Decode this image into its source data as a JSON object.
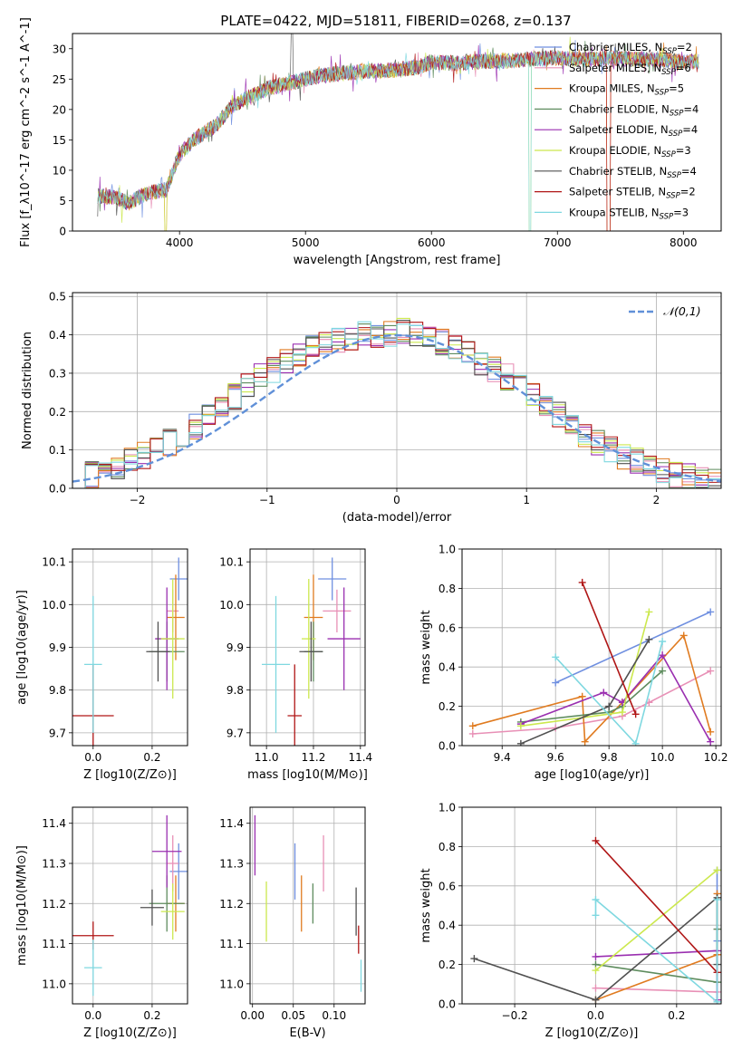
{
  "figure": {
    "title": "PLATE=0422, MJD=51811, FIBERID=0268, z=0.137"
  },
  "models": [
    {
      "name": "Chabrier MILES",
      "nssp": "2",
      "color": "#6f8fe0"
    },
    {
      "name": "Salpeter MILES",
      "nssp": "6",
      "color": "#e890b6"
    },
    {
      "name": "Kroupa MILES",
      "nssp": "5",
      "color": "#e07b20"
    },
    {
      "name": "Chabrier ELODIE",
      "nssp": "4",
      "color": "#5e8c5e"
    },
    {
      "name": "Salpeter ELODIE",
      "nssp": "4",
      "color": "#9a2fb0"
    },
    {
      "name": "Kroupa ELODIE",
      "nssp": "3",
      "color": "#cce84e"
    },
    {
      "name": "Chabrier STELIB",
      "nssp": "4",
      "color": "#505050"
    },
    {
      "name": "Salpeter STELIB",
      "nssp": "2",
      "color": "#b01616"
    },
    {
      "name": "Kroupa STELIB",
      "nssp": "3",
      "color": "#7fd8e0"
    }
  ],
  "chart_data": [
    {
      "id": "spectrum",
      "type": "line",
      "xlabel": "wavelength [Angstrom, rest frame]",
      "ylabel": "Flux [f_λ10^-17 erg cm^-2 s^-1 A^-1]",
      "xlim": [
        3150,
        8300
      ],
      "ylim": [
        0,
        32.5
      ],
      "xticks": [
        4000,
        5000,
        6000,
        7000,
        8000
      ],
      "yticks": [
        0,
        5,
        10,
        15,
        20,
        25,
        30
      ],
      "grid": false,
      "legend": "top-right",
      "continuum": {
        "x": [
          3350,
          3500,
          3600,
          3700,
          3800,
          3900,
          3950,
          4000,
          4100,
          4200,
          4300,
          4400,
          4500,
          4700,
          4900,
          5100,
          5300,
          5500,
          5700,
          5900,
          6000,
          6200,
          6400,
          6600,
          6800,
          7000,
          7200,
          7400,
          7600,
          7800,
          8000,
          8100
        ],
        "y": [
          5.8,
          5.5,
          4.6,
          5.8,
          6.5,
          6.8,
          10,
          12.5,
          14.8,
          16.2,
          17.5,
          20.3,
          21.5,
          23.5,
          24.5,
          25.5,
          26.0,
          26.3,
          26.5,
          27.0,
          27.8,
          27.6,
          27.9,
          28.0,
          28.3,
          28.5,
          28.2,
          28.5,
          28.3,
          28.2,
          27.8,
          27.9
        ]
      }
    },
    {
      "id": "residuals",
      "type": "histogram",
      "xlabel": "(data-model)/error",
      "ylabel": "Normed distribution",
      "xlim": [
        -2.5,
        2.5
      ],
      "ylim": [
        0,
        0.51
      ],
      "xticks": [
        -2,
        -1,
        0,
        1,
        2
      ],
      "yticks": [
        0.0,
        0.1,
        0.2,
        0.3,
        0.4,
        0.5
      ],
      "grid": true,
      "legend": "top-right",
      "reference": {
        "label": "𝒩(0,1)",
        "color": "#6090d8",
        "mean": 0,
        "sigma": 1
      },
      "bins": [
        -2.5,
        2.5,
        50
      ],
      "series_profile": [
        0.03,
        0.035,
        0.045,
        0.055,
        0.07,
        0.085,
        0.1,
        0.12,
        0.14,
        0.16,
        0.19,
        0.215,
        0.24,
        0.27,
        0.29,
        0.31,
        0.33,
        0.35,
        0.37,
        0.38,
        0.385,
        0.39,
        0.4,
        0.4,
        0.405,
        0.41,
        0.4,
        0.39,
        0.38,
        0.37,
        0.35,
        0.33,
        0.31,
        0.29,
        0.265,
        0.24,
        0.215,
        0.19,
        0.16,
        0.14,
        0.12,
        0.1,
        0.085,
        0.07,
        0.055,
        0.045,
        0.035,
        0.03,
        0.025,
        0.02
      ]
    },
    {
      "id": "age_vs_Z",
      "type": "scatter",
      "xlabel": "Z [log10(Z/Z⊙)]",
      "ylabel": "age [log10(age/yr)]",
      "xlim": [
        -0.07,
        0.32
      ],
      "ylim": [
        9.67,
        10.13
      ],
      "xticks": [
        0.0,
        0.2
      ],
      "yticks": [
        9.7,
        9.8,
        9.9,
        10.0,
        10.1
      ],
      "grid": true,
      "points": [
        {
          "x": 0.29,
          "y": 10.06,
          "xerr": 0.03,
          "yerr": 0.05
        },
        {
          "x": 0.27,
          "y": 9.985,
          "xerr": 0.02,
          "yerr": 0.05
        },
        {
          "x": 0.28,
          "y": 9.97,
          "xerr": 0.03,
          "yerr": 0.1
        },
        {
          "x": 0.25,
          "y": 9.89,
          "xerr": 0.06,
          "yerr": 0.07
        },
        {
          "x": 0.25,
          "y": 9.92,
          "xerr": 0.04,
          "yerr": 0.12
        },
        {
          "x": 0.27,
          "y": 9.92,
          "xerr": 0.04,
          "yerr": 0.14
        },
        {
          "x": 0.22,
          "y": 9.89,
          "xerr": 0.04,
          "yerr": 0.07
        },
        {
          "x": 0.0,
          "y": 9.74,
          "xerr": 0.07,
          "yerr": 0.12
        },
        {
          "x": 0.0,
          "y": 9.86,
          "xerr": 0.03,
          "yerr": 0.16
        }
      ]
    },
    {
      "id": "age_vs_mass",
      "type": "scatter",
      "xlabel": "mass [log10(M/M⊙)]",
      "ylabel": "",
      "xlim": [
        10.93,
        11.42
      ],
      "ylim": [
        9.67,
        10.13
      ],
      "xticks": [
        11.0,
        11.2,
        11.4
      ],
      "yticks": [
        9.7,
        9.8,
        9.9,
        10.0,
        10.1
      ],
      "grid": true,
      "points": [
        {
          "x": 11.28,
          "y": 10.06,
          "xerr": 0.06,
          "yerr": 0.05
        },
        {
          "x": 11.3,
          "y": 9.985,
          "xerr": 0.06,
          "yerr": 0.05
        },
        {
          "x": 11.2,
          "y": 9.97,
          "xerr": 0.04,
          "yerr": 0.1
        },
        {
          "x": 11.2,
          "y": 9.89,
          "xerr": 0.04,
          "yerr": 0.07
        },
        {
          "x": 11.33,
          "y": 9.92,
          "xerr": 0.07,
          "yerr": 0.12
        },
        {
          "x": 11.18,
          "y": 9.92,
          "xerr": 0.03,
          "yerr": 0.14
        },
        {
          "x": 11.19,
          "y": 9.89,
          "xerr": 0.05,
          "yerr": 0.07
        },
        {
          "x": 11.12,
          "y": 9.74,
          "xerr": 0.03,
          "yerr": 0.12
        },
        {
          "x": 11.04,
          "y": 9.86,
          "xerr": 0.06,
          "yerr": 0.16
        }
      ]
    },
    {
      "id": "weight_vs_age",
      "type": "line",
      "xlabel": "age [log10(age/yr)]",
      "ylabel": "mass weight",
      "xlim": [
        9.25,
        10.22
      ],
      "ylim": [
        0,
        1
      ],
      "xticks": [
        9.4,
        9.6,
        9.8,
        10.0,
        10.2
      ],
      "yticks": [
        0.0,
        0.2,
        0.4,
        0.6,
        0.8,
        1.0
      ],
      "grid": true,
      "series": [
        {
          "x": [
            9.6,
            10.18
          ],
          "y": [
            0.32,
            0.68
          ]
        },
        {
          "x": [
            9.29,
            9.6,
            9.85,
            9.95,
            10.18
          ],
          "y": [
            0.06,
            0.09,
            0.15,
            0.22,
            0.38
          ]
        },
        {
          "x": [
            9.29,
            9.7,
            9.71,
            9.85,
            10.08,
            10.18
          ],
          "y": [
            0.1,
            0.25,
            0.02,
            0.22,
            0.56,
            0.07
          ]
        },
        {
          "x": [
            9.47,
            9.8,
            9.85,
            10.0
          ],
          "y": [
            0.12,
            0.17,
            0.2,
            0.38
          ]
        },
        {
          "x": [
            9.47,
            9.78,
            9.85,
            10.0,
            10.18
          ],
          "y": [
            0.11,
            0.27,
            0.22,
            0.46,
            0.02
          ]
        },
        {
          "x": [
            9.47,
            9.85,
            9.95
          ],
          "y": [
            0.1,
            0.17,
            0.68
          ]
        },
        {
          "x": [
            9.47,
            9.8,
            9.95
          ],
          "y": [
            0.01,
            0.2,
            0.54
          ]
        },
        {
          "x": [
            9.7,
            9.9
          ],
          "y": [
            0.83,
            0.16
          ]
        },
        {
          "x": [
            9.6,
            9.9,
            10.0
          ],
          "y": [
            0.45,
            0.01,
            0.53
          ]
        }
      ]
    },
    {
      "id": "mass_vs_Z",
      "type": "scatter",
      "xlabel": "Z [log10(Z/Z⊙)]",
      "ylabel": "mass [log10(M/M⊙)]",
      "xlim": [
        -0.07,
        0.32
      ],
      "ylim": [
        10.95,
        11.44
      ],
      "xticks": [
        0.0,
        0.2
      ],
      "yticks": [
        11.0,
        11.1,
        11.2,
        11.3,
        11.4
      ],
      "grid": true,
      "points": [
        {
          "x": 0.29,
          "y": 11.28,
          "xerr": 0.03,
          "yerr": 0.07
        },
        {
          "x": 0.27,
          "y": 11.3,
          "xerr": 0.02,
          "yerr": 0.07
        },
        {
          "x": 0.28,
          "y": 11.2,
          "xerr": 0.03,
          "yerr": 0.07
        },
        {
          "x": 0.25,
          "y": 11.2,
          "xerr": 0.06,
          "yerr": 0.07
        },
        {
          "x": 0.25,
          "y": 11.33,
          "xerr": 0.05,
          "yerr": 0.09
        },
        {
          "x": 0.27,
          "y": 11.18,
          "xerr": 0.04,
          "yerr": 0.07
        },
        {
          "x": 0.2,
          "y": 11.19,
          "xerr": 0.04,
          "yerr": 0.045
        },
        {
          "x": 0.0,
          "y": 11.12,
          "xerr": 0.07,
          "yerr": 0.035
        },
        {
          "x": 0.0,
          "y": 11.04,
          "xerr": 0.03,
          "yerr": 0.07
        }
      ]
    },
    {
      "id": "mass_vs_ebv",
      "type": "scatter",
      "xlabel": "E(B-V)",
      "ylabel": "",
      "xlim": [
        -0.003,
        0.138
      ],
      "ylim": [
        10.95,
        11.44
      ],
      "xticks": [
        0.0,
        0.05,
        0.1
      ],
      "yticks": [
        11.0,
        11.1,
        11.2,
        11.3,
        11.4
      ],
      "grid": true,
      "points": [
        {
          "x": 0.052,
          "y": 11.28,
          "xerr": 0.0,
          "yerr": 0.07
        },
        {
          "x": 0.087,
          "y": 11.3,
          "xerr": 0.0,
          "yerr": 0.07
        },
        {
          "x": 0.06,
          "y": 11.2,
          "xerr": 0.0,
          "yerr": 0.07
        },
        {
          "x": 0.074,
          "y": 11.2,
          "xerr": 0.0,
          "yerr": 0.05
        },
        {
          "x": 0.003,
          "y": 11.345,
          "xerr": 0.0,
          "yerr": 0.075
        },
        {
          "x": 0.017,
          "y": 11.18,
          "xerr": 0.0,
          "yerr": 0.075
        },
        {
          "x": 0.127,
          "y": 11.18,
          "xerr": 0.0,
          "yerr": 0.06
        },
        {
          "x": 0.13,
          "y": 11.11,
          "xerr": 0.0,
          "yerr": 0.035
        },
        {
          "x": 0.133,
          "y": 11.02,
          "xerr": 0.0,
          "yerr": 0.04
        }
      ]
    },
    {
      "id": "weight_vs_Z",
      "type": "line",
      "xlabel": "Z [log10(Z/Z⊙)]",
      "ylabel": "mass weight",
      "xlim": [
        -0.33,
        0.31
      ],
      "ylim": [
        0,
        1
      ],
      "xticks": [
        -0.2,
        0.0,
        0.2
      ],
      "yticks": [
        0.0,
        0.2,
        0.4,
        0.6,
        0.8,
        1.0
      ],
      "grid": true,
      "series": [
        {
          "x": [
            0.3,
            0.3
          ],
          "y": [
            0.32,
            0.68
          ]
        },
        {
          "x": [
            0.0,
            0.3,
            0.3
          ],
          "y": [
            0.08,
            0.06,
            0.38
          ]
        },
        {
          "x": [
            0.0,
            0.3,
            0.3
          ],
          "y": [
            0.02,
            0.25,
            0.56
          ]
        },
        {
          "x": [
            0.0,
            0.3,
            0.3
          ],
          "y": [
            0.2,
            0.11,
            0.38
          ]
        },
        {
          "x": [
            0.0,
            0.3,
            0.3
          ],
          "y": [
            0.24,
            0.27,
            0.02
          ]
        },
        {
          "x": [
            0.0,
            0.3
          ],
          "y": [
            0.17,
            0.68
          ]
        },
        {
          "x": [
            -0.3,
            0.0,
            0.3,
            0.3
          ],
          "y": [
            0.23,
            0.02,
            0.54,
            0.2
          ]
        },
        {
          "x": [
            0.0,
            0.3
          ],
          "y": [
            0.83,
            0.16
          ]
        },
        {
          "x": [
            0.0,
            0.0,
            0.3,
            0.3
          ],
          "y": [
            0.45,
            0.53,
            0.01,
            0.53
          ]
        }
      ]
    }
  ]
}
